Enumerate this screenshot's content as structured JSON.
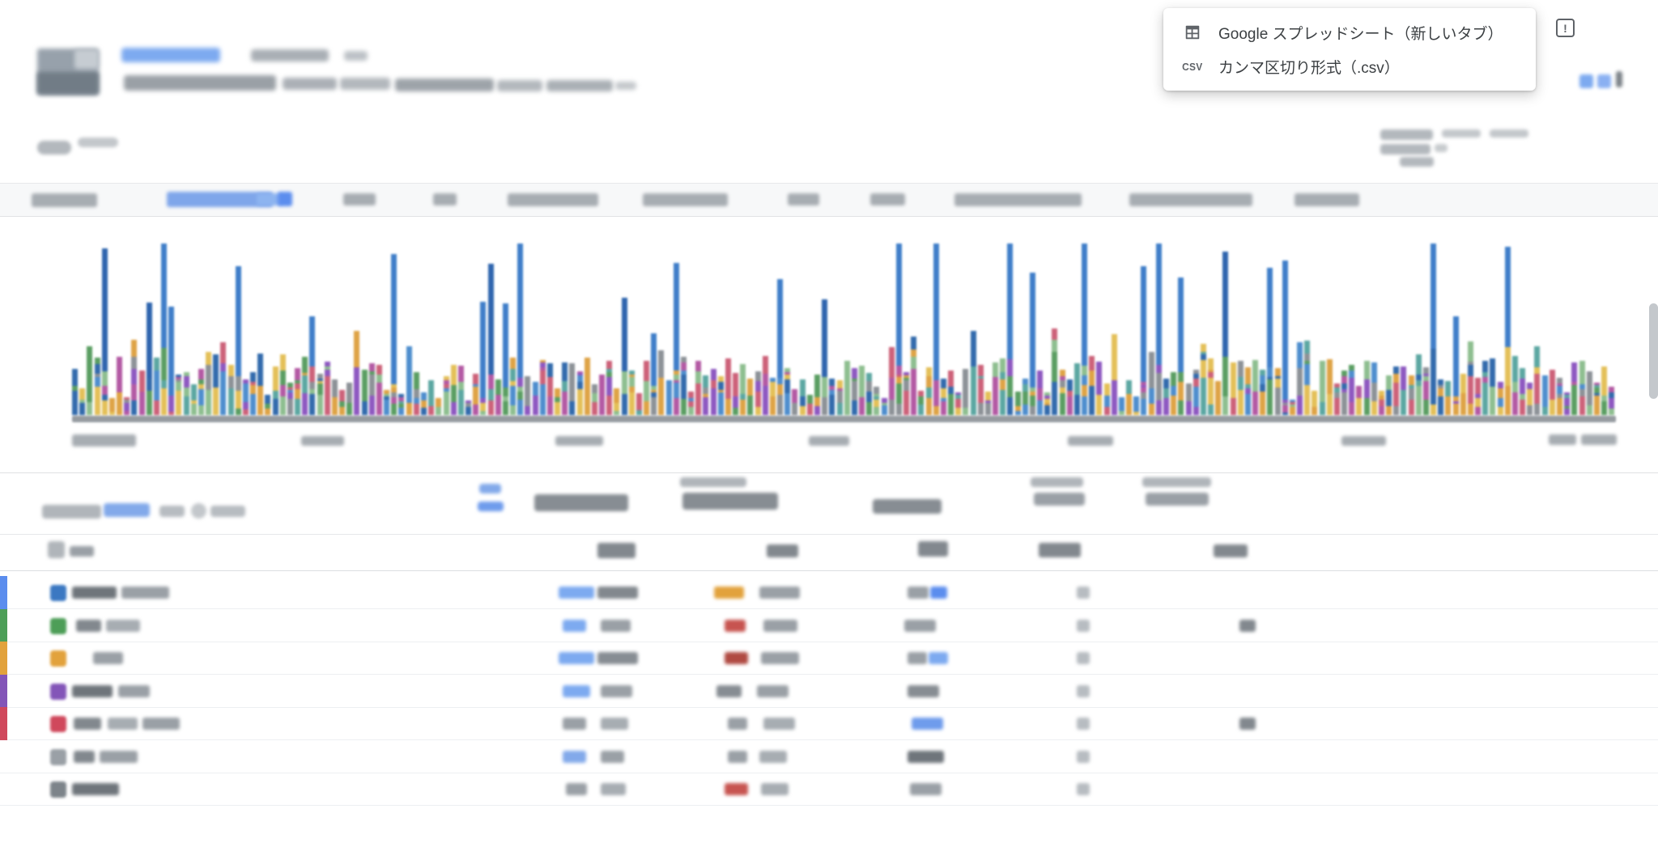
{
  "export_menu": {
    "items": [
      {
        "icon": "spreadsheet-icon",
        "label": "Google スプレッドシート（新しいタブ）"
      },
      {
        "icon": "csv-icon",
        "icon_label": "CSV",
        "label": "カンマ区切り形式（.csv）"
      }
    ]
  },
  "feedback": {
    "glyph": "!"
  },
  "chart": {
    "type": "stacked-bar",
    "bar_count": 208,
    "palette": [
      "#4a8fd4",
      "#2f6cb3",
      "#57a05f",
      "#8bc08d",
      "#e3a33d",
      "#e7c050",
      "#9157c8",
      "#b958a8",
      "#d4607a",
      "#8d9298",
      "#57a8a3"
    ],
    "spike_colors": [
      "#3b7fd0",
      "#2b66b5"
    ],
    "baseline_color": "#7c828a"
  },
  "table": {
    "row_stripe_colors": [
      "#5b8dee",
      "#4d9e57",
      "#e2a23c",
      "#8355b8",
      "#d0485c",
      "",
      ""
    ],
    "row_icon_colors": [
      "#3b78c2",
      "#4d9e57",
      "#e2a23c",
      "#8355b8",
      "#d0485c",
      "#9aa0a6",
      "#7d848a"
    ]
  }
}
